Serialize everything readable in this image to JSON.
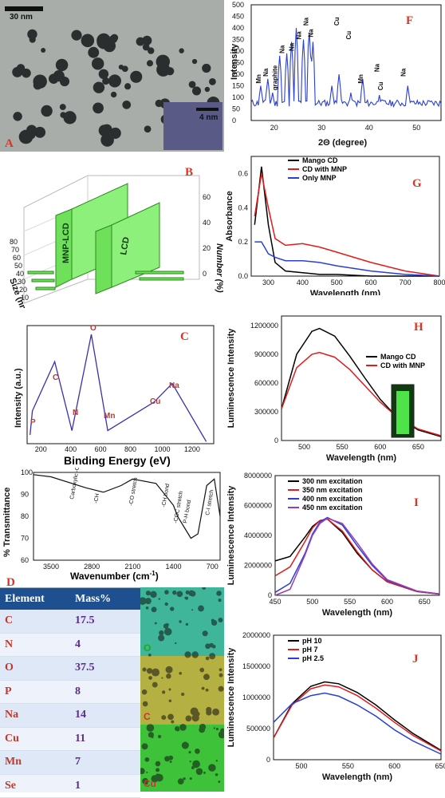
{
  "A": {
    "letter": "A",
    "scale_main": "30 nm",
    "scale_inset": "4 nm"
  },
  "B": {
    "letter": "B",
    "title": "",
    "bar_labels": [
      "MNP-LCD",
      "LCD"
    ],
    "xlabel": "Size (nm)",
    "ylabel": "Number (%)",
    "x_ticks": [
      "10",
      "20",
      "30",
      "40",
      "50",
      "60",
      "70",
      "80"
    ],
    "z_ticks": [
      "0",
      "20",
      "40",
      "60"
    ]
  },
  "C": {
    "letter": "C",
    "xlabel": "Binding Energy (eV)",
    "ylabel": "Intensity (a.u.)",
    "x_ticks": [
      "200",
      "400",
      "600",
      "800",
      "1000",
      "1200"
    ],
    "peaks": [
      "P",
      "C",
      "N",
      "O",
      "Mn",
      "Cu",
      "Na"
    ]
  },
  "D": {
    "letter": "D",
    "xlabel": "Wavenumber (cm",
    "xlabel_sup": "-1",
    "xlabel_end": ")",
    "ylabel": "% Transmittance",
    "y_ticks": [
      "60",
      "70",
      "80",
      "90",
      "100"
    ],
    "x_ticks": [
      "3500",
      "2800",
      "2100",
      "1400",
      "700"
    ],
    "annotations": [
      "Carboxylic -OH",
      "-CH",
      "-CO stretch",
      "-CH bond",
      "-COC stretch",
      "P-H bond",
      "C-I stretch"
    ]
  },
  "E": {
    "letter": "E",
    "header": {
      "element": "Element",
      "mass": "Mass%"
    },
    "rows": [
      {
        "el": "C",
        "val": "17.5"
      },
      {
        "el": "N",
        "val": "4"
      },
      {
        "el": "O",
        "val": "37.5"
      },
      {
        "el": "P",
        "val": "8"
      },
      {
        "el": "Na",
        "val": "14"
      },
      {
        "el": "Cu",
        "val": "11"
      },
      {
        "el": "Mn",
        "val": "7"
      },
      {
        "el": "Se",
        "val": "1"
      }
    ],
    "maps": [
      "O",
      "C",
      "Cu"
    ]
  },
  "F": {
    "letter": "F",
    "xlabel": "2Θ (degree)",
    "ylabel": "Intensity",
    "y_ticks": [
      "0",
      "50",
      "100",
      "150",
      "200",
      "250",
      "300",
      "350",
      "400",
      "450",
      "500"
    ],
    "x_ticks": [
      "20",
      "30",
      "40",
      "50"
    ],
    "peak_labels": [
      "Mn",
      "Na",
      "graphite",
      "Na",
      "Na",
      "Na",
      "Na",
      "Na",
      "Cu",
      "Cu",
      "Mn",
      "Na",
      "Cu",
      "Na"
    ]
  },
  "G": {
    "letter": "G",
    "xlabel": "Wavelength (nm)",
    "ylabel": "Absorbance",
    "legend": [
      "Mango CD",
      "CD with MNP",
      "Only MNP"
    ],
    "colors": [
      "#000000",
      "#e21b1b",
      "#2a3fd6"
    ],
    "y_ticks": [
      "0.0",
      "0.2",
      "0.4",
      "0.6"
    ],
    "x_ticks": [
      "300",
      "400",
      "500",
      "600",
      "700",
      "800"
    ]
  },
  "H": {
    "letter": "H",
    "xlabel": "Wavelength (nm)",
    "ylabel": "Luminescence Intensity",
    "legend": [
      "Mango CD",
      "CD with MNP"
    ],
    "colors": [
      "#000000",
      "#e21b1b"
    ],
    "y_ticks": [
      "0",
      "300000",
      "600000",
      "900000",
      "1200000"
    ],
    "x_ticks": [
      "500",
      "550",
      "600",
      "650"
    ]
  },
  "I": {
    "letter": "I",
    "xlabel": "Wavelength (nm)",
    "ylabel": "Luminescence Intensity",
    "legend": [
      "300 nm excitation",
      "350 nm excitation",
      "400 nm excitation",
      "450 nm excitation"
    ],
    "colors": [
      "#000000",
      "#e21b1b",
      "#2a3fd6",
      "#9b3fb0"
    ],
    "y_ticks": [
      "0",
      "2000000",
      "4000000",
      "6000000",
      "8000000"
    ],
    "x_ticks": [
      "450",
      "500",
      "550",
      "600",
      "650"
    ]
  },
  "J": {
    "letter": "J",
    "xlabel": "Wavelength (nm)",
    "ylabel": "Luminescence Intensity",
    "legend": [
      "pH 10",
      "pH 7",
      "pH 2.5"
    ],
    "colors": [
      "#000000",
      "#e21b1b",
      "#2a3fd6"
    ],
    "y_ticks": [
      "0",
      "500000",
      "1000000",
      "1500000",
      "2000000"
    ],
    "x_ticks": [
      "500",
      "550",
      "600",
      "650"
    ]
  },
  "chart_data": [
    {
      "panel": "C",
      "type": "line",
      "title": "",
      "x": [
        120,
        135,
        285,
        400,
        530,
        640,
        950,
        1072,
        1300
      ],
      "y": [
        8,
        30,
        75,
        12,
        100,
        12,
        38,
        55,
        2
      ],
      "xlim": [
        100,
        1350
      ]
    },
    {
      "panel": "D",
      "type": "line",
      "x": [
        3800,
        3500,
        2900,
        2600,
        2300,
        2100,
        1700,
        1400,
        1330,
        1100,
        980,
        830,
        700,
        600
      ],
      "y": [
        99,
        98,
        93,
        91,
        94,
        97,
        95,
        85,
        80,
        70,
        72,
        94,
        97,
        80
      ],
      "xlim": [
        3800,
        600
      ],
      "ylim": [
        60,
        100
      ]
    },
    {
      "panel": "F",
      "type": "line",
      "x": [
        17,
        18.5,
        19.5,
        21,
        22.5,
        23.5,
        24.5,
        26,
        27.2,
        28,
        32,
        33.5,
        36,
        38.5,
        42,
        43,
        48
      ],
      "y": [
        150,
        180,
        120,
        280,
        290,
        340,
        400,
        350,
        400,
        340,
        150,
        200,
        120,
        180,
        110,
        80,
        150
      ],
      "xlim": [
        15,
        55
      ],
      "ylim": [
        0,
        500
      ]
    },
    {
      "panel": "G",
      "type": "line",
      "x": [
        260,
        280,
        300,
        320,
        350,
        400,
        450,
        500,
        600,
        700,
        800
      ],
      "series": [
        {
          "name": "Mango CD",
          "values": [
            0.3,
            0.64,
            0.3,
            0.08,
            0.03,
            0.02,
            0.01,
            0.01,
            0.0,
            0.0,
            0.0
          ]
        },
        {
          "name": "CD with MNP",
          "values": [
            0.35,
            0.6,
            0.4,
            0.22,
            0.18,
            0.19,
            0.17,
            0.14,
            0.08,
            0.03,
            0.0
          ]
        },
        {
          "name": "Only MNP",
          "values": [
            0.2,
            0.2,
            0.13,
            0.11,
            0.09,
            0.09,
            0.08,
            0.06,
            0.03,
            0.01,
            0.0
          ]
        }
      ],
      "ylim": [
        0,
        0.7
      ]
    },
    {
      "panel": "H",
      "type": "line",
      "x": [
        470,
        490,
        510,
        520,
        540,
        560,
        580,
        600,
        620,
        650,
        680
      ],
      "series": [
        {
          "name": "Mango CD",
          "values": [
            330000,
            900000,
            1140000,
            1170000,
            1090000,
            880000,
            650000,
            430000,
            260000,
            110000,
            40000
          ]
        },
        {
          "name": "CD with MNP",
          "values": [
            330000,
            760000,
            900000,
            920000,
            870000,
            740000,
            570000,
            400000,
            260000,
            120000,
            50000
          ]
        }
      ],
      "ylim": [
        0,
        1300000
      ]
    },
    {
      "panel": "I",
      "type": "line",
      "x": [
        450,
        470,
        490,
        500,
        510,
        520,
        540,
        560,
        580,
        600,
        640,
        670
      ],
      "series": [
        {
          "name": "300 nm excitation",
          "values": [
            2300000,
            2600000,
            3900000,
            4600000,
            5000000,
            5100000,
            4200000,
            2800000,
            1700000,
            900000,
            250000,
            80000
          ]
        },
        {
          "name": "350 nm excitation",
          "values": [
            1300000,
            1900000,
            3600000,
            4500000,
            5000000,
            5100000,
            4300000,
            2900000,
            1700000,
            900000,
            250000,
            80000
          ]
        },
        {
          "name": "400 nm excitation",
          "values": [
            200000,
            800000,
            2800000,
            4100000,
            4900000,
            5200000,
            4700000,
            3300000,
            2000000,
            1000000,
            280000,
            90000
          ]
        },
        {
          "name": "450 nm excitation",
          "values": [
            0,
            400000,
            2700000,
            4000000,
            4800000,
            5150000,
            4800000,
            3500000,
            2100000,
            1050000,
            290000,
            90000
          ]
        }
      ],
      "ylim": [
        0,
        8000000
      ]
    },
    {
      "panel": "J",
      "type": "line",
      "x": [
        470,
        490,
        510,
        525,
        540,
        560,
        580,
        600,
        620,
        650
      ],
      "series": [
        {
          "name": "pH 10",
          "values": [
            350000,
            900000,
            1180000,
            1250000,
            1220000,
            1080000,
            880000,
            640000,
            420000,
            150000
          ]
        },
        {
          "name": "pH 7",
          "values": [
            350000,
            880000,
            1140000,
            1200000,
            1170000,
            1030000,
            830000,
            600000,
            390000,
            140000
          ]
        },
        {
          "name": "pH 2.5",
          "values": [
            600000,
            900000,
            1030000,
            1070000,
            1020000,
            880000,
            700000,
            480000,
            300000,
            90000
          ]
        }
      ],
      "ylim": [
        0,
        2000000
      ]
    }
  ]
}
